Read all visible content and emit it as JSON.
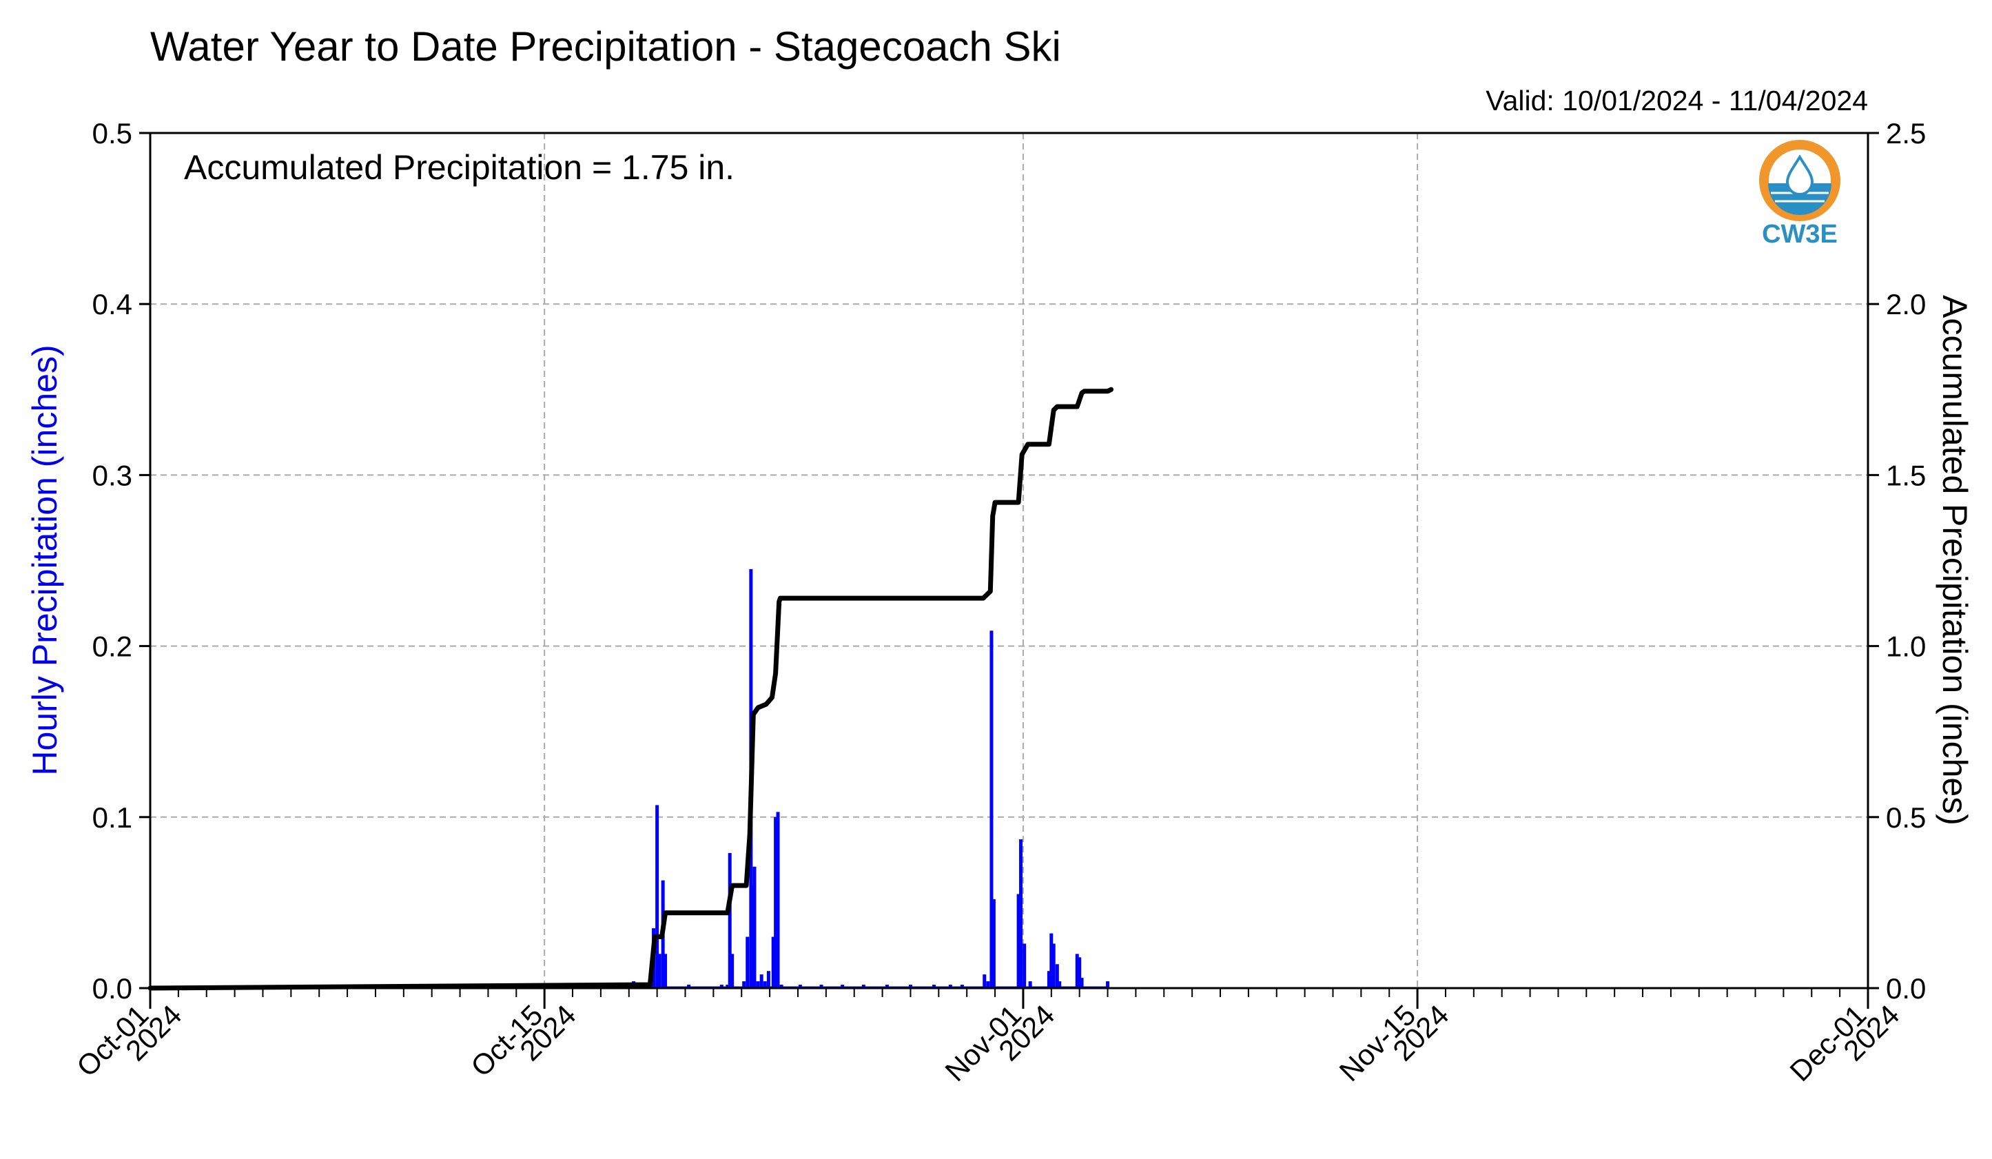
{
  "title": "Water Year to Date Precipitation - Stagecoach Ski",
  "valid_label": "Valid: 10/01/2024 - 11/04/2024",
  "annotation": "Accumulated Precipitation = 1.75 in.",
  "logo": {
    "text": "CW3E",
    "colors": {
      "ring": "#f0962a",
      "water": "#2a8fc4",
      "text": "#2a8fc4"
    }
  },
  "chart_data": {
    "type": "bar",
    "xlabel": "",
    "x_range": [
      "2024-10-01",
      "2024-12-01"
    ],
    "x_ticks": [
      {
        "date": "2024-10-01",
        "label_top": "Oct-01",
        "label_bottom": "2024"
      },
      {
        "date": "2024-10-15",
        "label_top": "Oct-15",
        "label_bottom": "2024"
      },
      {
        "date": "2024-11-01",
        "label_top": "Nov-01",
        "label_bottom": "2024"
      },
      {
        "date": "2024-11-15",
        "label_top": "Nov-15",
        "label_bottom": "2024"
      },
      {
        "date": "2024-12-01",
        "label_top": "Dec-01",
        "label_bottom": "2024"
      }
    ],
    "grid": true,
    "left_axis": {
      "label": "Hourly Precipitation (inches)",
      "ylim": [
        0,
        0.5
      ],
      "ticks": [
        "0.0",
        "0.1",
        "0.2",
        "0.3",
        "0.4",
        "0.5"
      ],
      "color": "#0000ee"
    },
    "right_axis": {
      "label": "Accumulated Precipitation (inches)",
      "ylim": [
        0,
        2.5
      ],
      "ticks": [
        "0.0",
        "0.5",
        "1.0",
        "1.5",
        "2.0",
        "2.5"
      ]
    },
    "series": [
      {
        "type": "bar",
        "axis": "left",
        "color": "#0000ff",
        "points": [
          [
            "2024-10-18 04:00",
            0.004
          ],
          [
            "2024-10-18 21:00",
            0.035
          ],
          [
            "2024-10-19 00:00",
            0.107
          ],
          [
            "2024-10-19 02:00",
            0.02
          ],
          [
            "2024-10-19 05:00",
            0.063
          ],
          [
            "2024-10-19 07:00",
            0.02
          ],
          [
            "2024-10-20 03:00",
            0.002
          ],
          [
            "2024-10-21 07:00",
            0.002
          ],
          [
            "2024-10-21 12:00",
            0.002
          ],
          [
            "2024-10-21 14:00",
            0.079
          ],
          [
            "2024-10-21 16:00",
            0.02
          ],
          [
            "2024-10-22 02:00",
            0.004
          ],
          [
            "2024-10-22 05:00",
            0.03
          ],
          [
            "2024-10-22 08:00",
            0.245
          ],
          [
            "2024-10-22 10:00",
            0.06
          ],
          [
            "2024-10-22 11:00",
            0.071
          ],
          [
            "2024-10-22 14:00",
            0.004
          ],
          [
            "2024-10-22 17:00",
            0.008
          ],
          [
            "2024-10-22 20:00",
            0.004
          ],
          [
            "2024-10-22 23:00",
            0.01
          ],
          [
            "2024-10-23 03:00",
            0.03
          ],
          [
            "2024-10-23 05:00",
            0.1
          ],
          [
            "2024-10-23 07:00",
            0.103
          ],
          [
            "2024-10-23 10:00",
            0.002
          ],
          [
            "2024-10-24 02:00",
            0.002
          ],
          [
            "2024-10-24 20:00",
            0.002
          ],
          [
            "2024-10-25 14:00",
            0.002
          ],
          [
            "2024-10-26 08:00",
            0.002
          ],
          [
            "2024-10-27 04:00",
            0.002
          ],
          [
            "2024-10-28 00:00",
            0.002
          ],
          [
            "2024-10-28 20:00",
            0.002
          ],
          [
            "2024-10-29 10:00",
            0.002
          ],
          [
            "2024-10-29 20:00",
            0.002
          ],
          [
            "2024-10-30 15:00",
            0.008
          ],
          [
            "2024-10-30 18:00",
            0.004
          ],
          [
            "2024-10-30 21:00",
            0.209
          ],
          [
            "2024-10-30 23:00",
            0.052
          ],
          [
            "2024-10-31 20:00",
            0.055
          ],
          [
            "2024-10-31 22:00",
            0.087
          ],
          [
            "2024-11-01 01:00",
            0.026
          ],
          [
            "2024-11-01 06:00",
            0.004
          ],
          [
            "2024-11-01 22:00",
            0.01
          ],
          [
            "2024-11-02 00:00",
            0.032
          ],
          [
            "2024-11-02 02:00",
            0.026
          ],
          [
            "2024-11-02 05:00",
            0.014
          ],
          [
            "2024-11-02 07:00",
            0.004
          ],
          [
            "2024-11-02 22:00",
            0.02
          ],
          [
            "2024-11-03 00:00",
            0.018
          ],
          [
            "2024-11-03 02:00",
            0.006
          ],
          [
            "2024-11-04 00:00",
            0.004
          ]
        ]
      },
      {
        "type": "line",
        "axis": "right",
        "color": "#000000",
        "points": [
          [
            "2024-10-01 00:00",
            0.0
          ],
          [
            "2024-10-18 18:00",
            0.01
          ],
          [
            "2024-10-18 22:00",
            0.15
          ],
          [
            "2024-10-19 04:00",
            0.15
          ],
          [
            "2024-10-19 07:00",
            0.22
          ],
          [
            "2024-10-21 12:00",
            0.22
          ],
          [
            "2024-10-21 16:00",
            0.3
          ],
          [
            "2024-10-22 04:00",
            0.3
          ],
          [
            "2024-10-22 07:00",
            0.45
          ],
          [
            "2024-10-22 10:00",
            0.8
          ],
          [
            "2024-10-22 14:00",
            0.82
          ],
          [
            "2024-10-22 21:00",
            0.83
          ],
          [
            "2024-10-23 02:00",
            0.85
          ],
          [
            "2024-10-23 05:00",
            0.92
          ],
          [
            "2024-10-23 08:00",
            1.13
          ],
          [
            "2024-10-23 09:00",
            1.14
          ],
          [
            "2024-10-30 14:00",
            1.14
          ],
          [
            "2024-10-30 17:00",
            1.15
          ],
          [
            "2024-10-30 20:00",
            1.16
          ],
          [
            "2024-10-30 22:00",
            1.38
          ],
          [
            "2024-10-31 00:00",
            1.42
          ],
          [
            "2024-10-31 20:00",
            1.42
          ],
          [
            "2024-10-31 23:00",
            1.56
          ],
          [
            "2024-11-01 04:00",
            1.59
          ],
          [
            "2024-11-01 22:00",
            1.59
          ],
          [
            "2024-11-02 02:00",
            1.69
          ],
          [
            "2024-11-02 05:00",
            1.7
          ],
          [
            "2024-11-02 22:00",
            1.7
          ],
          [
            "2024-11-03 02:00",
            1.74
          ],
          [
            "2024-11-03 04:00",
            1.745
          ],
          [
            "2024-11-04 00:00",
            1.745
          ],
          [
            "2024-11-04 03:00",
            1.75
          ]
        ]
      }
    ]
  }
}
